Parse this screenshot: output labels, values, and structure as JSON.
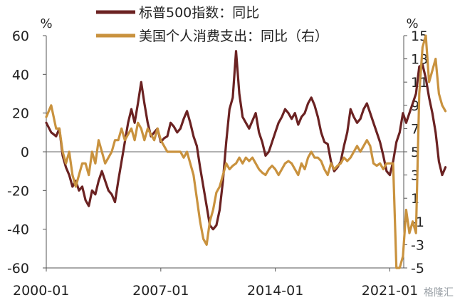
{
  "chart_data": {
    "type": "line",
    "title": "",
    "left_unit": "%",
    "right_unit": "%",
    "xlim": [
      2000.0,
      2021.85
    ],
    "ylim_left": [
      -60,
      60
    ],
    "ylim_right": [
      -5,
      15
    ],
    "left_ticks": [
      "60",
      "40",
      "20",
      "0",
      "-20",
      "-40",
      "-60"
    ],
    "right_ticks": [
      "15",
      "13",
      "11",
      "9",
      "7",
      "5",
      "3",
      "1",
      "-1",
      "-3",
      "-5"
    ],
    "x_ticks": [
      {
        "x": 2000.0,
        "label": "2000-01"
      },
      {
        "x": 2007.0,
        "label": "2007-01"
      },
      {
        "x": 2014.0,
        "label": "2014-01"
      },
      {
        "x": 2021.0,
        "label": "2021-01"
      }
    ],
    "grid": false,
    "legend_position": "top",
    "series": [
      {
        "name": "标普500指数：同比",
        "axis": "left",
        "color": "#6b2222",
        "points": [
          [
            2000.0,
            15
          ],
          [
            2000.3,
            10
          ],
          [
            2000.6,
            8
          ],
          [
            2000.8,
            12
          ],
          [
            2001.0,
            -2
          ],
          [
            2001.2,
            -8
          ],
          [
            2001.4,
            -12
          ],
          [
            2001.6,
            -18
          ],
          [
            2001.8,
            -15
          ],
          [
            2002.0,
            -20
          ],
          [
            2002.2,
            -18
          ],
          [
            2002.4,
            -25
          ],
          [
            2002.6,
            -28
          ],
          [
            2002.8,
            -20
          ],
          [
            2003.0,
            -22
          ],
          [
            2003.2,
            -15
          ],
          [
            2003.4,
            -10
          ],
          [
            2003.6,
            -15
          ],
          [
            2003.8,
            -20
          ],
          [
            2004.0,
            -22
          ],
          [
            2004.2,
            -26
          ],
          [
            2004.4,
            -15
          ],
          [
            2004.6,
            -5
          ],
          [
            2004.8,
            5
          ],
          [
            2005.0,
            15
          ],
          [
            2005.2,
            22
          ],
          [
            2005.4,
            15
          ],
          [
            2005.6,
            25
          ],
          [
            2005.8,
            36
          ],
          [
            2006.0,
            25
          ],
          [
            2006.2,
            15
          ],
          [
            2006.4,
            8
          ],
          [
            2006.6,
            10
          ],
          [
            2006.8,
            12
          ],
          [
            2007.0,
            5
          ],
          [
            2007.2,
            7
          ],
          [
            2007.4,
            8
          ],
          [
            2007.6,
            15
          ],
          [
            2007.8,
            13
          ],
          [
            2008.0,
            10
          ],
          [
            2008.2,
            12
          ],
          [
            2008.4,
            17
          ],
          [
            2008.6,
            21
          ],
          [
            2008.8,
            15
          ],
          [
            2009.0,
            8
          ],
          [
            2009.2,
            3
          ],
          [
            2009.4,
            -8
          ],
          [
            2009.6,
            -18
          ],
          [
            2009.8,
            -28
          ],
          [
            2010.0,
            -38
          ],
          [
            2010.2,
            -40
          ],
          [
            2010.4,
            -38
          ],
          [
            2010.6,
            -30
          ],
          [
            2010.8,
            -15
          ],
          [
            2011.0,
            5
          ],
          [
            2011.2,
            22
          ],
          [
            2011.4,
            28
          ],
          [
            2011.6,
            52
          ],
          [
            2011.8,
            30
          ],
          [
            2012.0,
            18
          ],
          [
            2012.2,
            15
          ],
          [
            2012.4,
            12
          ],
          [
            2012.6,
            16
          ],
          [
            2012.8,
            20
          ],
          [
            2013.0,
            10
          ],
          [
            2013.2,
            5
          ],
          [
            2013.4,
            -2
          ],
          [
            2013.6,
            0
          ],
          [
            2013.8,
            5
          ],
          [
            2014.0,
            10
          ],
          [
            2014.2,
            15
          ],
          [
            2014.4,
            18
          ],
          [
            2014.6,
            22
          ],
          [
            2014.8,
            20
          ],
          [
            2015.0,
            17
          ],
          [
            2015.2,
            20
          ],
          [
            2015.4,
            14
          ],
          [
            2015.6,
            18
          ],
          [
            2015.8,
            20
          ],
          [
            2016.0,
            25
          ],
          [
            2016.2,
            28
          ],
          [
            2016.4,
            24
          ],
          [
            2016.6,
            18
          ],
          [
            2016.8,
            10
          ],
          [
            2017.0,
            5
          ],
          [
            2017.2,
            4
          ],
          [
            2017.4,
            -5
          ],
          [
            2017.6,
            -10
          ],
          [
            2017.8,
            -8
          ],
          [
            2018.0,
            -5
          ],
          [
            2018.2,
            3
          ],
          [
            2018.4,
            10
          ],
          [
            2018.6,
            22
          ],
          [
            2018.8,
            18
          ],
          [
            2019.0,
            15
          ],
          [
            2019.2,
            17
          ],
          [
            2019.4,
            22
          ],
          [
            2019.6,
            25
          ],
          [
            2019.8,
            20
          ],
          [
            2020.0,
            15
          ],
          [
            2020.2,
            10
          ],
          [
            2020.4,
            5
          ],
          [
            2020.6,
            -2
          ],
          [
            2020.8,
            -10
          ],
          [
            2021.0,
            -12
          ],
          [
            2021.2,
            -5
          ],
          [
            2021.4,
            5
          ],
          [
            2021.6,
            10
          ],
          [
            2021.8,
            20
          ],
          [
            2022.0,
            15
          ],
          [
            2022.2,
            20
          ],
          [
            2022.4,
            25
          ],
          [
            2022.6,
            30
          ],
          [
            2022.8,
            44
          ],
          [
            2023.0,
            45
          ],
          [
            2023.2,
            38
          ],
          [
            2023.4,
            28
          ],
          [
            2023.6,
            20
          ],
          [
            2023.8,
            10
          ],
          [
            2024.0,
            -5
          ],
          [
            2024.2,
            -12
          ],
          [
            2024.4,
            -8
          ]
        ]
      },
      {
        "name": "美国个人消费支出：同比（右）",
        "axis": "right",
        "color": "#c9923e",
        "points": [
          [
            2000.0,
            8
          ],
          [
            2000.3,
            9
          ],
          [
            2000.6,
            7
          ],
          [
            2000.8,
            7
          ],
          [
            2001.0,
            5
          ],
          [
            2001.2,
            4
          ],
          [
            2001.4,
            5
          ],
          [
            2001.6,
            3
          ],
          [
            2001.8,
            2
          ],
          [
            2002.0,
            3
          ],
          [
            2002.2,
            4
          ],
          [
            2002.4,
            4
          ],
          [
            2002.6,
            3
          ],
          [
            2002.8,
            5
          ],
          [
            2003.0,
            4
          ],
          [
            2003.2,
            6
          ],
          [
            2003.4,
            5
          ],
          [
            2003.6,
            4
          ],
          [
            2003.8,
            4.5
          ],
          [
            2004.0,
            5
          ],
          [
            2004.2,
            6
          ],
          [
            2004.4,
            6
          ],
          [
            2004.6,
            7
          ],
          [
            2004.8,
            6
          ],
          [
            2005.0,
            6.5
          ],
          [
            2005.2,
            7
          ],
          [
            2005.4,
            6
          ],
          [
            2005.6,
            7.5
          ],
          [
            2005.8,
            7
          ],
          [
            2006.0,
            6
          ],
          [
            2006.2,
            7
          ],
          [
            2006.4,
            6.5
          ],
          [
            2006.6,
            6
          ],
          [
            2006.8,
            7
          ],
          [
            2007.0,
            6
          ],
          [
            2007.2,
            5.5
          ],
          [
            2007.4,
            5
          ],
          [
            2007.6,
            5
          ],
          [
            2007.8,
            5
          ],
          [
            2008.0,
            5
          ],
          [
            2008.2,
            5
          ],
          [
            2008.4,
            4.5
          ],
          [
            2008.6,
            5
          ],
          [
            2008.8,
            4
          ],
          [
            2009.0,
            3
          ],
          [
            2009.2,
            1
          ],
          [
            2009.4,
            -1
          ],
          [
            2009.6,
            -2.5
          ],
          [
            2009.8,
            -3
          ],
          [
            2010.0,
            -1
          ],
          [
            2010.2,
            0
          ],
          [
            2010.4,
            1.5
          ],
          [
            2010.6,
            2
          ],
          [
            2010.8,
            3
          ],
          [
            2011.0,
            4
          ],
          [
            2011.2,
            3.5
          ],
          [
            2011.4,
            3.8
          ],
          [
            2011.6,
            4
          ],
          [
            2011.8,
            4.5
          ],
          [
            2012.0,
            4
          ],
          [
            2012.2,
            4.5
          ],
          [
            2012.4,
            4.2
          ],
          [
            2012.6,
            4.5
          ],
          [
            2012.8,
            4
          ],
          [
            2013.0,
            3.5
          ],
          [
            2013.2,
            3.2
          ],
          [
            2013.4,
            3
          ],
          [
            2013.6,
            3.5
          ],
          [
            2013.8,
            3.8
          ],
          [
            2014.0,
            3.5
          ],
          [
            2014.2,
            3
          ],
          [
            2014.4,
            3.5
          ],
          [
            2014.6,
            4
          ],
          [
            2014.8,
            4.2
          ],
          [
            2015.0,
            4
          ],
          [
            2015.2,
            3.5
          ],
          [
            2015.4,
            3
          ],
          [
            2015.6,
            4
          ],
          [
            2015.8,
            3.5
          ],
          [
            2016.0,
            4.5
          ],
          [
            2016.2,
            5
          ],
          [
            2016.4,
            4.5
          ],
          [
            2016.6,
            4.5
          ],
          [
            2016.8,
            4.2
          ],
          [
            2017.0,
            3.5
          ],
          [
            2017.2,
            3
          ],
          [
            2017.4,
            4
          ],
          [
            2017.6,
            3.5
          ],
          [
            2017.8,
            3.8
          ],
          [
            2018.0,
            4
          ],
          [
            2018.2,
            4.5
          ],
          [
            2018.4,
            4.2
          ],
          [
            2018.6,
            4.5
          ],
          [
            2018.8,
            5
          ],
          [
            2019.0,
            5.5
          ],
          [
            2019.2,
            5
          ],
          [
            2019.4,
            5.5
          ],
          [
            2019.6,
            6
          ],
          [
            2019.8,
            5.5
          ],
          [
            2020.0,
            4
          ],
          [
            2020.2,
            3.8
          ],
          [
            2020.4,
            4
          ],
          [
            2020.6,
            3.5
          ],
          [
            2020.8,
            4
          ],
          [
            2021.0,
            4
          ],
          [
            2021.2,
            4
          ],
          [
            2021.4,
            -5
          ],
          [
            2021.6,
            -5
          ],
          [
            2021.8,
            -4
          ],
          [
            2022.0,
            0
          ],
          [
            2022.2,
            -2
          ],
          [
            2022.4,
            -1
          ],
          [
            2022.6,
            -2
          ],
          [
            2022.8,
            10
          ],
          [
            2023.0,
            14
          ],
          [
            2023.2,
            15
          ],
          [
            2023.4,
            11
          ],
          [
            2023.6,
            12
          ],
          [
            2023.8,
            13
          ],
          [
            2024.0,
            10
          ],
          [
            2024.2,
            9
          ],
          [
            2024.4,
            8.5
          ]
        ]
      }
    ],
    "watermark": "格隆汇"
  }
}
